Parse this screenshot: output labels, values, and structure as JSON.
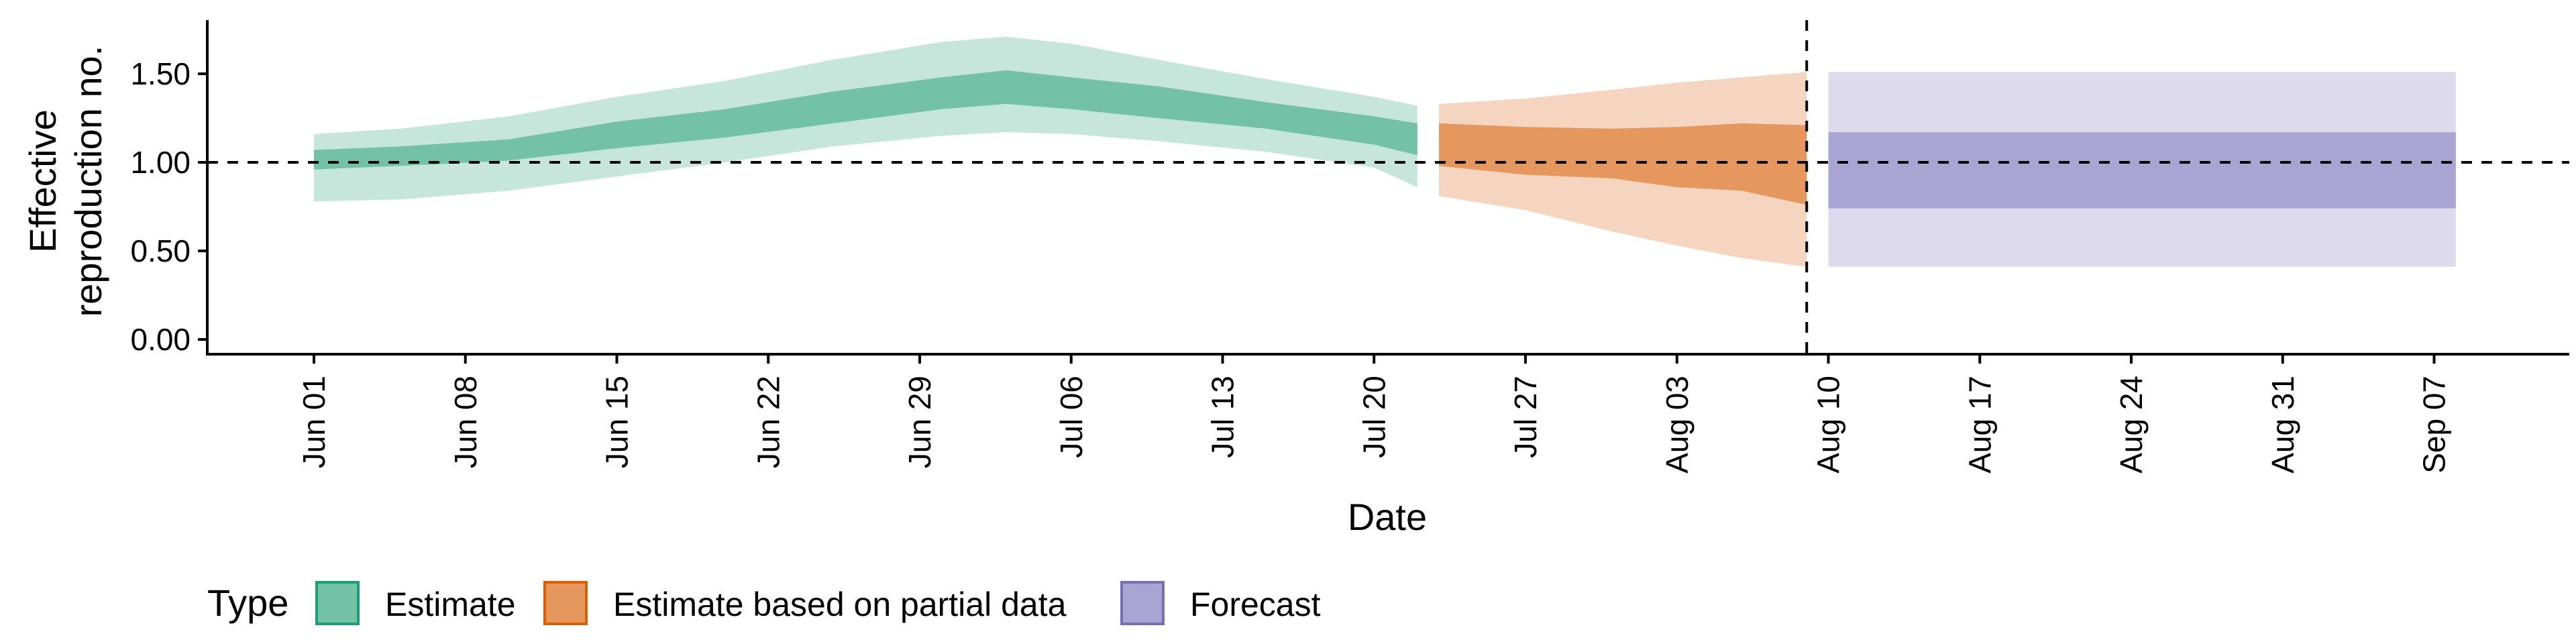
{
  "chart_data": {
    "type": "area",
    "xlabel": "Date",
    "ylabel_lines": [
      "Effective",
      "reproduction no."
    ],
    "ylim": [
      0,
      1.8
    ],
    "xlim": [
      "2020-05-28",
      "2020-09-12"
    ],
    "x_ticks": [
      {
        "date": "2020-06-01",
        "label": "Jun 01"
      },
      {
        "date": "2020-06-08",
        "label": "Jun 08"
      },
      {
        "date": "2020-06-15",
        "label": "Jun 15"
      },
      {
        "date": "2020-06-22",
        "label": "Jun 22"
      },
      {
        "date": "2020-06-29",
        "label": "Jun 29"
      },
      {
        "date": "2020-07-06",
        "label": "Jul 06"
      },
      {
        "date": "2020-07-13",
        "label": "Jul 13"
      },
      {
        "date": "2020-07-20",
        "label": "Jul 20"
      },
      {
        "date": "2020-07-27",
        "label": "Jul 27"
      },
      {
        "date": "2020-08-03",
        "label": "Aug 03"
      },
      {
        "date": "2020-08-10",
        "label": "Aug 10"
      },
      {
        "date": "2020-08-17",
        "label": "Aug 17"
      },
      {
        "date": "2020-08-24",
        "label": "Aug 24"
      },
      {
        "date": "2020-08-31",
        "label": "Aug 31"
      },
      {
        "date": "2020-09-07",
        "label": "Sep 07"
      }
    ],
    "y_ticks": [
      {
        "value": 0,
        "label": "0.00"
      },
      {
        "value": 0.5,
        "label": "0.50"
      },
      {
        "value": 1.0,
        "label": "1.00"
      },
      {
        "value": 1.5,
        "label": "1.50"
      }
    ],
    "reference_lines": {
      "horizontal_y": 1.0,
      "vertical_date": "2020-08-09"
    },
    "legend": {
      "title": "Type",
      "placement": "bottom-left"
    },
    "series": [
      {
        "name": "Estimate",
        "color_inner": "#73c2a7",
        "color_outer": "#c6e6dc",
        "color_key_border": "#1b9e77",
        "points": [
          {
            "date": "2020-06-01",
            "outer": [
              0.78,
              1.16
            ],
            "inner": [
              0.96,
              1.07
            ]
          },
          {
            "date": "2020-06-05",
            "outer": [
              0.79,
              1.19
            ],
            "inner": [
              0.98,
              1.09
            ]
          },
          {
            "date": "2020-06-10",
            "outer": [
              0.84,
              1.26
            ],
            "inner": [
              1.01,
              1.13
            ]
          },
          {
            "date": "2020-06-15",
            "outer": [
              0.92,
              1.37
            ],
            "inner": [
              1.08,
              1.23
            ]
          },
          {
            "date": "2020-06-20",
            "outer": [
              1.0,
              1.46
            ],
            "inner": [
              1.14,
              1.3
            ]
          },
          {
            "date": "2020-06-25",
            "outer": [
              1.09,
              1.58
            ],
            "inner": [
              1.22,
              1.4
            ]
          },
          {
            "date": "2020-06-30",
            "outer": [
              1.15,
              1.68
            ],
            "inner": [
              1.3,
              1.48
            ]
          },
          {
            "date": "2020-07-03",
            "outer": [
              1.17,
              1.71
            ],
            "inner": [
              1.33,
              1.52
            ]
          },
          {
            "date": "2020-07-06",
            "outer": [
              1.16,
              1.67
            ],
            "inner": [
              1.3,
              1.48
            ]
          },
          {
            "date": "2020-07-10",
            "outer": [
              1.12,
              1.58
            ],
            "inner": [
              1.25,
              1.43
            ]
          },
          {
            "date": "2020-07-15",
            "outer": [
              1.06,
              1.47
            ],
            "inner": [
              1.19,
              1.34
            ]
          },
          {
            "date": "2020-07-20",
            "outer": [
              0.97,
              1.37
            ],
            "inner": [
              1.1,
              1.26
            ]
          },
          {
            "date": "2020-07-22",
            "outer": [
              0.86,
              1.32
            ],
            "inner": [
              1.04,
              1.22
            ]
          }
        ]
      },
      {
        "name": "Estimate based on partial data",
        "color_inner": "#e6975e",
        "color_outer": "#f5d5bf",
        "color_key_border": "#d95f02",
        "points": [
          {
            "date": "2020-07-23",
            "outer": [
              0.81,
              1.33
            ],
            "inner": [
              0.98,
              1.22
            ]
          },
          {
            "date": "2020-07-27",
            "outer": [
              0.73,
              1.36
            ],
            "inner": [
              0.93,
              1.2
            ]
          },
          {
            "date": "2020-07-31",
            "outer": [
              0.61,
              1.41
            ],
            "inner": [
              0.91,
              1.19
            ]
          },
          {
            "date": "2020-08-03",
            "outer": [
              0.53,
              1.45
            ],
            "inner": [
              0.86,
              1.2
            ]
          },
          {
            "date": "2020-08-06",
            "outer": [
              0.46,
              1.48
            ],
            "inner": [
              0.84,
              1.22
            ]
          },
          {
            "date": "2020-08-09",
            "outer": [
              0.41,
              1.51
            ],
            "inner": [
              0.76,
              1.21
            ]
          }
        ]
      },
      {
        "name": "Forecast",
        "color_inner": "#a9a5d2",
        "color_outer": "#dcdaec",
        "color_key_border": "#7570b3",
        "points": [
          {
            "date": "2020-08-10",
            "outer": [
              0.41,
              1.51
            ],
            "inner": [
              0.74,
              1.17
            ]
          },
          {
            "date": "2020-09-08",
            "outer": [
              0.41,
              1.51
            ],
            "inner": [
              0.74,
              1.17
            ]
          }
        ]
      }
    ]
  }
}
